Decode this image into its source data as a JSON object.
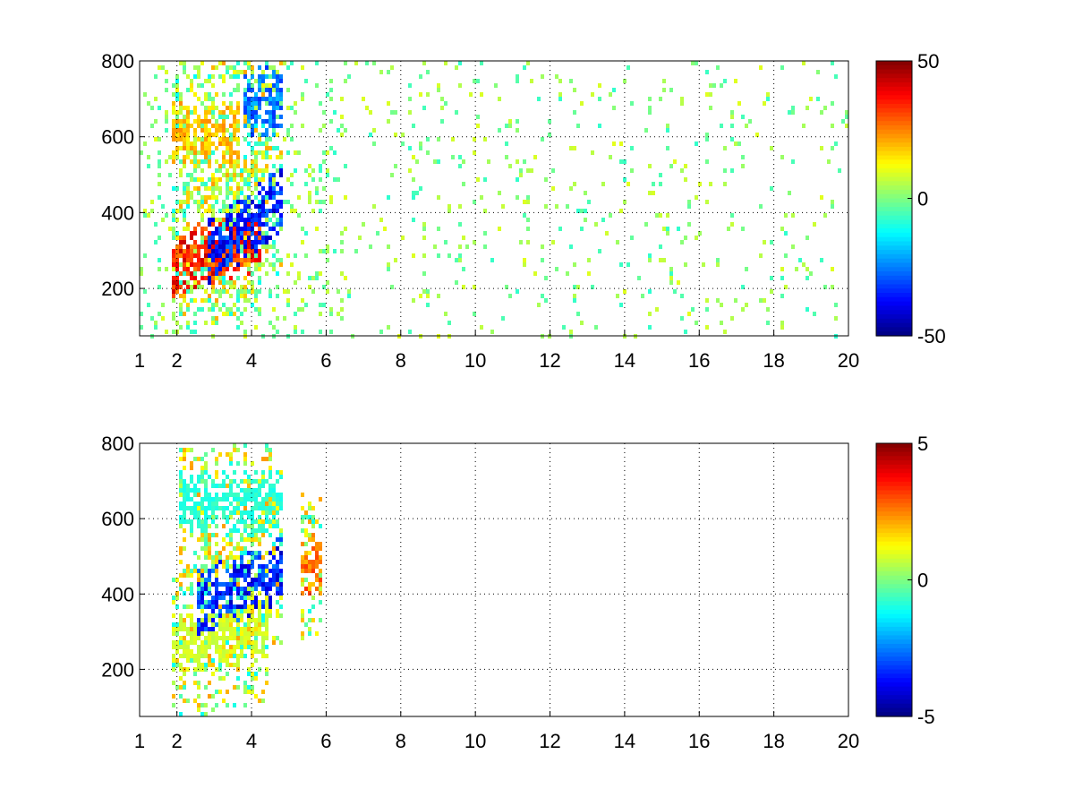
{
  "colormap": "jet",
  "chart_data": [
    {
      "type": "heatmap",
      "title": "",
      "xlabel": "",
      "ylabel": "",
      "xlim": [
        1,
        20
      ],
      "ylim": [
        75,
        800
      ],
      "x_ticks": [
        "1",
        "2",
        "4",
        "6",
        "8",
        "10",
        "12",
        "14",
        "16",
        "18",
        "20"
      ],
      "y_ticks": [
        "200",
        "400",
        "600",
        "800"
      ],
      "grid": "dotted",
      "colorbar": {
        "min": -50,
        "max": 50,
        "ticks": [
          "50",
          "0",
          "-50"
        ]
      },
      "background_noise": true,
      "features": [
        {
          "label": "positive band",
          "x_range": [
            1.8,
            4.2
          ],
          "y_center": 270,
          "y_slope": 30,
          "value": 40
        },
        {
          "label": "negative band",
          "x_range": [
            2.8,
            4.8
          ],
          "y_center": 300,
          "y_slope": 70,
          "value": -40
        },
        {
          "label": "upper positive",
          "x_range": [
            1.8,
            3.6
          ],
          "y_center": 610,
          "y_slope": 0,
          "value": 22
        },
        {
          "label": "upper negative",
          "x_range": [
            3.7,
            4.8
          ],
          "y_center": 700,
          "y_slope": 0,
          "value": -30
        }
      ]
    },
    {
      "type": "heatmap",
      "title": "",
      "xlabel": "",
      "ylabel": "",
      "xlim": [
        1,
        20
      ],
      "ylim": [
        75,
        800
      ],
      "x_ticks": [
        "1",
        "2",
        "4",
        "6",
        "8",
        "10",
        "12",
        "14",
        "16",
        "18",
        "20"
      ],
      "y_ticks": [
        "200",
        "400",
        "600",
        "800"
      ],
      "grid": "dotted",
      "colorbar": {
        "min": -5,
        "max": 5,
        "ticks": [
          "5",
          "0",
          "-5"
        ]
      },
      "background_noise": false,
      "features": [
        {
          "label": "low band",
          "x_range": [
            1.8,
            4.4
          ],
          "y_center": 260,
          "y_slope": 25,
          "value": 1
        },
        {
          "label": "negative band",
          "x_range": [
            2.5,
            4.8
          ],
          "y_center": 380,
          "y_slope": 40,
          "value": -4
        },
        {
          "label": "upper band",
          "x_range": [
            2.0,
            4.8
          ],
          "y_center": 650,
          "y_slope": 0,
          "value": -1
        },
        {
          "label": "positive spot",
          "x_range": [
            5.3,
            5.8
          ],
          "y_center": 480,
          "y_slope": 0,
          "value": 3
        }
      ]
    }
  ]
}
